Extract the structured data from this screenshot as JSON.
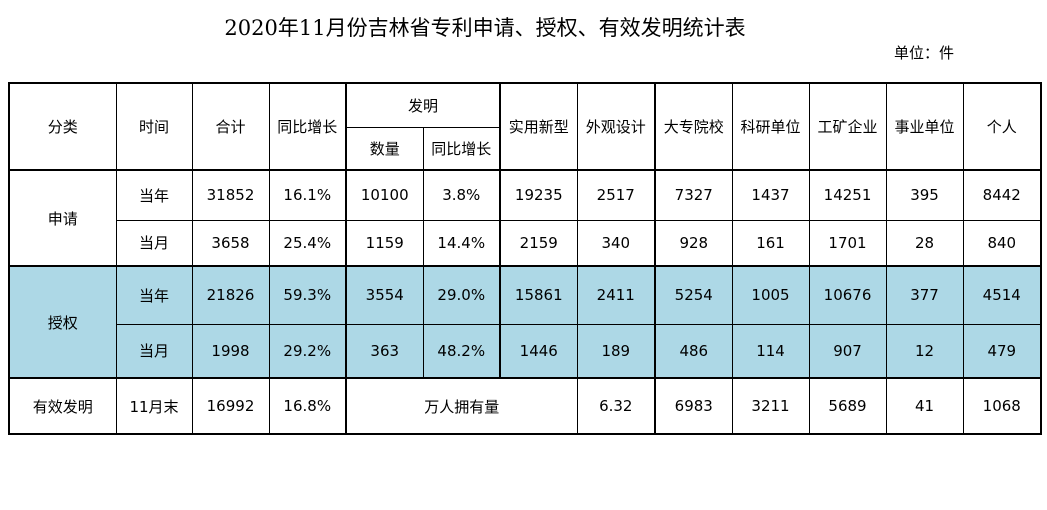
{
  "title": "2020年11月份吉林省专利申请、授权、有效发明统计表",
  "unit": "单位：件",
  "headers": {
    "category": "分类",
    "time": "时间",
    "total": "合计",
    "yoy": "同比增长",
    "invention": "发明",
    "inv_count": "数量",
    "inv_yoy": "同比增长",
    "utility": "实用新型",
    "design": "外观设计",
    "college": "大专院校",
    "research": "科研单位",
    "enterprise": "工矿企业",
    "institution": "事业单位",
    "individual": "个人"
  },
  "groups": {
    "apply": "申请",
    "grant": "授权",
    "valid": "有效发明"
  },
  "rows": [
    {
      "time": "当年",
      "total": "31852",
      "yoy": "16.1%",
      "inv_count": "10100",
      "inv_yoy": "3.8%",
      "utility": "19235",
      "design": "2517",
      "college": "7327",
      "research": "1437",
      "enterprise": "14251",
      "institution": "395",
      "individual": "8442"
    },
    {
      "time": "当月",
      "total": "3658",
      "yoy": "25.4%",
      "inv_count": "1159",
      "inv_yoy": "14.4%",
      "utility": "2159",
      "design": "340",
      "college": "928",
      "research": "161",
      "enterprise": "1701",
      "institution": "28",
      "individual": "840"
    },
    {
      "time": "当年",
      "total": "21826",
      "yoy": "59.3%",
      "inv_count": "3554",
      "inv_yoy": "29.0%",
      "utility": "15861",
      "design": "2411",
      "college": "5254",
      "research": "1005",
      "enterprise": "10676",
      "institution": "377",
      "individual": "4514"
    },
    {
      "time": "当月",
      "total": "1998",
      "yoy": "29.2%",
      "inv_count": "363",
      "inv_yoy": "48.2%",
      "utility": "1446",
      "design": "189",
      "college": "486",
      "research": "114",
      "enterprise": "907",
      "institution": "12",
      "individual": "479"
    }
  ],
  "valid_row": {
    "time": "11月末",
    "total": "16992",
    "yoy": "16.8%",
    "per_10k_label": "万人拥有量",
    "per_10k_value": "6.32",
    "college": "6983",
    "research": "3211",
    "enterprise": "5689",
    "institution": "41",
    "individual": "1068"
  },
  "colors": {
    "grant_band": "#add8e6",
    "border": "#000000"
  }
}
